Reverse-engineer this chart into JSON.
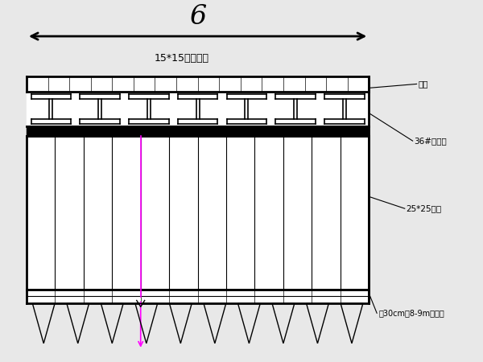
{
  "bg_color": "#e8e8e8",
  "line_color": "#000000",
  "magenta_color": "#ff00ff",
  "dim_label": "6",
  "deck_label": "15*15方木桥面",
  "label_zhengqiao": "栈桥",
  "label_36H": "36#工字锂",
  "label_25x25": "25*25方木",
  "label_pile": "直30cm长8-9m圆木桦",
  "fig_width": 6.0,
  "fig_height": 4.5,
  "dpi": 100
}
